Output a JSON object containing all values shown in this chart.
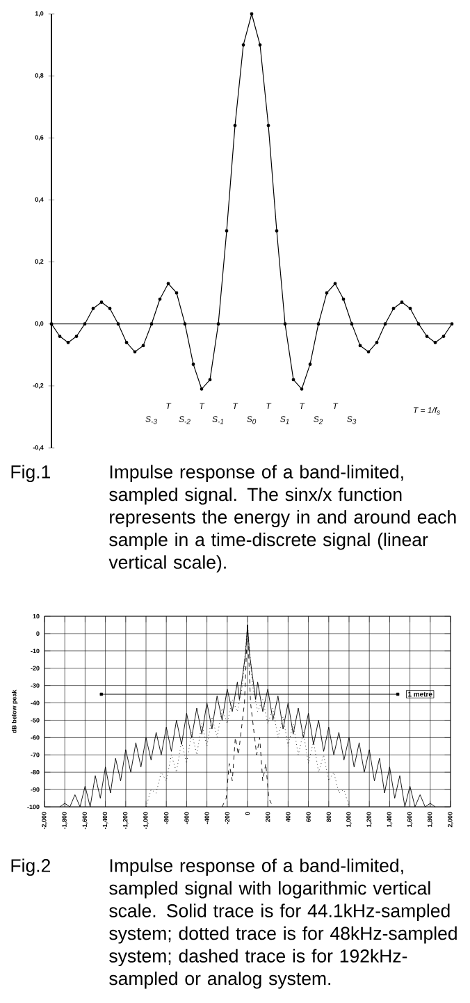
{
  "chart_data": [
    {
      "type": "line",
      "color": "#000000",
      "marker": "circle",
      "tick_labels": "y",
      "categories": [
        null,
        null,
        null,
        null,
        null,
        null,
        null,
        null,
        null,
        null,
        null,
        null,
        null,
        null,
        null,
        null,
        null,
        null,
        null,
        null,
        null,
        null,
        null,
        null,
        null,
        null,
        null,
        null,
        null,
        null,
        null,
        null,
        null,
        null,
        null,
        null,
        null,
        null,
        null,
        null,
        null,
        null,
        null,
        null,
        null,
        null,
        null,
        null,
        null
      ],
      "values": [
        0,
        -0.04,
        -0.06,
        -0.04,
        0,
        0.05,
        0.07,
        0.05,
        0,
        -0.06,
        -0.09,
        -0.07,
        0,
        0.08,
        0.13,
        0.1,
        0,
        -0.13,
        -0.21,
        -0.18,
        0,
        0.3,
        0.64,
        0.9,
        1.0,
        0.9,
        0.64,
        0.3,
        0,
        -0.18,
        -0.21,
        -0.13,
        0,
        0.1,
        0.13,
        0.08,
        0,
        -0.07,
        -0.09,
        -0.06,
        0,
        0.05,
        0.07,
        0.05,
        0,
        -0.04,
        -0.06,
        -0.04,
        0
      ],
      "ylim": [
        -0.4,
        1.0
      ],
      "yticks": [
        {
          "value": -0.4,
          "label": "-0,4"
        },
        {
          "value": -0.2,
          "label": "-0,2"
        },
        {
          "value": 0,
          "label": "0,0"
        },
        {
          "value": 0.2,
          "label": "0,2"
        },
        {
          "value": 0.4,
          "label": "0,4"
        },
        {
          "value": 0.6,
          "label": "0,6"
        },
        {
          "value": 0.8,
          "label": "0,8"
        },
        {
          "value": 1.0,
          "label": "1,0"
        }
      ],
      "annotations": [
        "Fig.1",
        "Impulse response of a band-limited, sampled signal. The sinx/x function represents the energy in and around each sample in a time-discrete signal (linear vertical scale).",
        "S$_{-3}$",
        "S$_{-2}$",
        "S$_{-1}$",
        "S$_{0}$",
        "S$_{1}$",
        "S$_{2}$",
        "S$_{3}$",
        "T",
        "T",
        "T",
        "T",
        "T",
        "T",
        "T = 1/f$_{s}$"
      ]
    },
    {
      "type": "line",
      "ylabel": "dB below peak",
      "grid": true,
      "xlim": [
        -2000,
        2000
      ],
      "ylim": [
        -100,
        10
      ],
      "yticks": [
        -100,
        -90,
        -80,
        -70,
        -60,
        -50,
        -40,
        -30,
        -20,
        -10,
        0,
        10
      ],
      "xticks": [
        {
          "value": -2000,
          "label": "-2,000"
        },
        {
          "value": -1800,
          "label": "-1,800"
        },
        {
          "value": -1600,
          "label": "-1,600"
        },
        {
          "value": -1400,
          "label": "-1,400"
        },
        {
          "value": -1200,
          "label": "-1,200"
        },
        {
          "value": -1000,
          "label": "-1,000"
        },
        {
          "value": -800,
          "label": "-800"
        },
        {
          "value": -600,
          "label": "-600"
        },
        {
          "value": -400,
          "label": "-400"
        },
        {
          "value": -200,
          "label": "-200"
        },
        {
          "value": 0,
          "label": "0"
        },
        {
          "value": 200,
          "label": "200"
        },
        {
          "value": 400,
          "label": "400"
        },
        {
          "value": 600,
          "label": "600"
        },
        {
          "value": 800,
          "label": "800"
        },
        {
          "value": 1000,
          "label": "1,000"
        },
        {
          "value": 1200,
          "label": "1,200"
        },
        {
          "value": 1400,
          "label": "1,400"
        },
        {
          "value": 1600,
          "label": "1,600"
        },
        {
          "value": 1800,
          "label": "1,800"
        },
        {
          "value": 2000,
          "label": "2,000"
        }
      ],
      "series": [
        {
          "color": "#000000",
          "line_style": "solid",
          "x": [
            -1850,
            -1800,
            -1750,
            -1700,
            -1650,
            -1600,
            -1550,
            -1500,
            -1450,
            -1400,
            -1350,
            -1300,
            -1250,
            -1200,
            -1150,
            -1100,
            -1050,
            -1000,
            -950,
            -900,
            -850,
            -800,
            -750,
            -700,
            -650,
            -600,
            -550,
            -500,
            -450,
            -400,
            -350,
            -300,
            -250,
            -200,
            -150,
            -100,
            -80,
            -50,
            -20,
            0,
            20,
            50,
            80,
            100,
            150,
            200,
            250,
            300,
            350,
            400,
            450,
            500,
            550,
            600,
            650,
            700,
            750,
            800,
            850,
            900,
            950,
            1000,
            1050,
            1100,
            1150,
            1200,
            1250,
            1300,
            1350,
            1400,
            1450,
            1500,
            1550,
            1600,
            1650,
            1700,
            1750,
            1800,
            1850
          ],
          "values": [
            -100,
            -98,
            -100,
            -93,
            -100,
            -88,
            -100,
            -82,
            -95,
            -77,
            -92,
            -72,
            -85,
            -67,
            -80,
            -63,
            -77,
            -60,
            -73,
            -57,
            -70,
            -54,
            -68,
            -50,
            -64,
            -46,
            -60,
            -43,
            -58,
            -40,
            -55,
            -36,
            -50,
            -32,
            -45,
            -28,
            -38,
            -25,
            -12,
            5,
            -12,
            -25,
            -38,
            -28,
            -45,
            -32,
            -50,
            -36,
            -55,
            -40,
            -58,
            -43,
            -60,
            -46,
            -64,
            -50,
            -68,
            -54,
            -70,
            -57,
            -73,
            -60,
            -77,
            -63,
            -80,
            -67,
            -85,
            -72,
            -92,
            -77,
            -95,
            -82,
            -100,
            -88,
            -100,
            -93,
            -100,
            -98,
            -100
          ]
        },
        {
          "color": "#000000",
          "line_style": "dotted",
          "x": [
            -1000,
            -950,
            -900,
            -850,
            -800,
            -750,
            -700,
            -650,
            -600,
            -550,
            -500,
            -450,
            -400,
            -350,
            -300,
            -250,
            -200,
            -150,
            -100,
            -50,
            0,
            50,
            100,
            150,
            200,
            250,
            300,
            350,
            400,
            450,
            500,
            550,
            600,
            650,
            700,
            750,
            800,
            850,
            900,
            950,
            1000
          ],
          "values": [
            -100,
            -90,
            -92,
            -80,
            -85,
            -70,
            -80,
            -62,
            -75,
            -57,
            -70,
            -52,
            -65,
            -48,
            -60,
            -43,
            -52,
            -38,
            -45,
            -30,
            5,
            -30,
            -45,
            -38,
            -52,
            -43,
            -60,
            -48,
            -65,
            -52,
            -70,
            -57,
            -75,
            -62,
            -80,
            -70,
            -85,
            -80,
            -92,
            -90,
            -100
          ]
        },
        {
          "color": "#000000",
          "line_style": "dashed",
          "x": [
            -250,
            -210,
            -180,
            -150,
            -120,
            -90,
            -60,
            -30,
            0,
            30,
            60,
            90,
            120,
            150,
            180,
            210,
            250
          ],
          "values": [
            -100,
            -95,
            -75,
            -85,
            -60,
            -70,
            -55,
            -40,
            5,
            -40,
            -55,
            -70,
            -60,
            -85,
            -75,
            -95,
            -100
          ]
        },
        {
          "color": "#000000",
          "line_style": "solid",
          "marker": "square",
          "x": [
            -1440,
            1480
          ],
          "values": [
            -35,
            -35
          ]
        }
      ],
      "annotations": [
        "1 metre",
        "Fig.2",
        "Impulse response of a band-limited, sampled signal with logarithmic vertical scale. Solid trace is for 44.1kHz-sampled system; dotted trace is for 48kHz-sampled system; dashed trace is for 192kHz-sampled or analog system."
      ]
    }
  ]
}
